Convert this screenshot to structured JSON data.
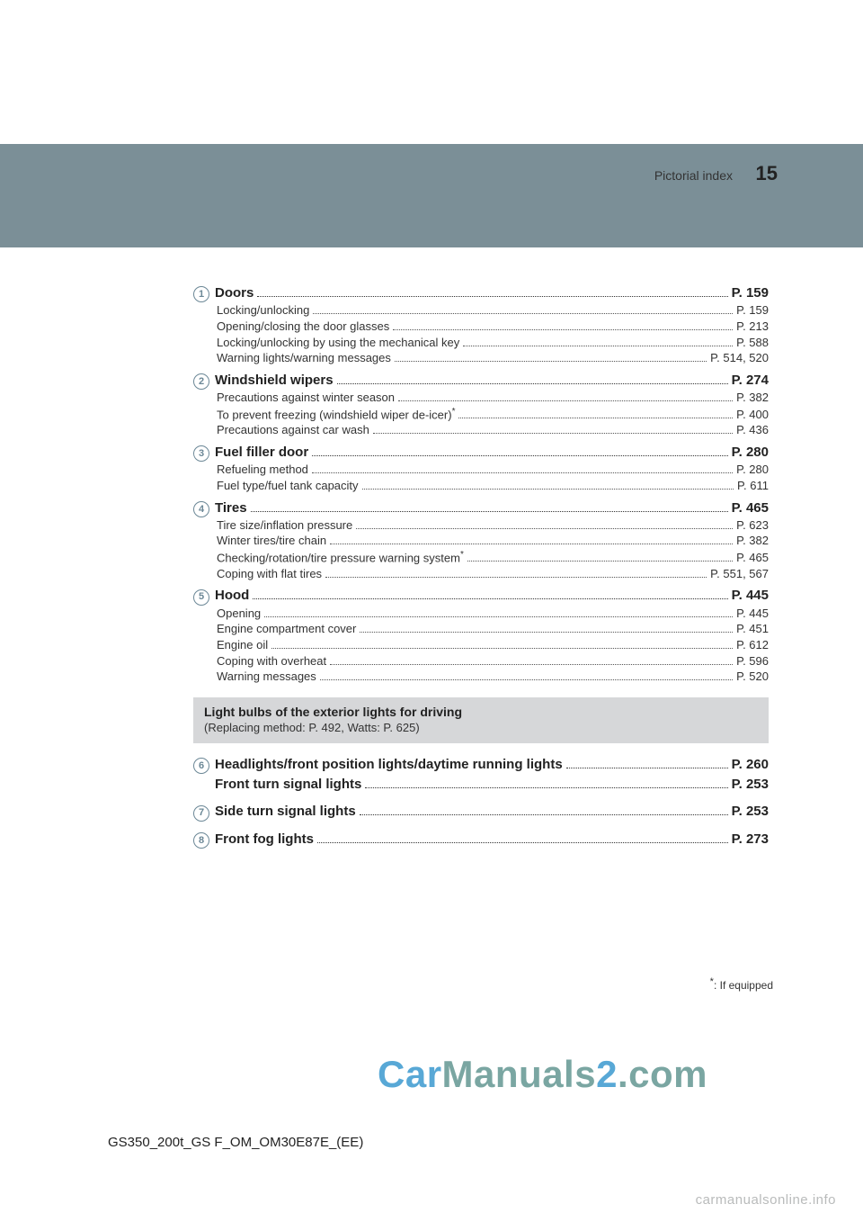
{
  "header": {
    "label": "Pictorial index",
    "pagenum": "15"
  },
  "sections": [
    {
      "num": "1",
      "title": "Doors",
      "page": "P. 159",
      "subs": [
        {
          "label": "Locking/unlocking",
          "page": "P. 159"
        },
        {
          "label": "Opening/closing the door glasses",
          "page": "P. 213"
        },
        {
          "label": "Locking/unlocking by using the mechanical key",
          "page": "P. 588"
        },
        {
          "label": "Warning lights/warning messages",
          "page": "P. 514, 520"
        }
      ]
    },
    {
      "num": "2",
      "title": "Windshield wipers",
      "page": "P. 274",
      "subs": [
        {
          "label": "Precautions against winter season",
          "page": "P. 382"
        },
        {
          "label": "To prevent freezing (windshield wiper de-icer)",
          "sup": "*",
          "page": "P. 400"
        },
        {
          "label": "Precautions against car wash",
          "page": "P. 436"
        }
      ]
    },
    {
      "num": "3",
      "title": "Fuel filler door",
      "page": "P. 280",
      "subs": [
        {
          "label": "Refueling method",
          "page": "P. 280"
        },
        {
          "label": "Fuel type/fuel tank capacity",
          "page": "P. 611"
        }
      ]
    },
    {
      "num": "4",
      "title": "Tires",
      "page": "P. 465",
      "subs": [
        {
          "label": "Tire size/inflation pressure",
          "page": "P. 623"
        },
        {
          "label": "Winter tires/tire chain",
          "page": "P. 382"
        },
        {
          "label": "Checking/rotation/tire pressure warning system",
          "sup": "*",
          "page": "P. 465"
        },
        {
          "label": "Coping with flat tires",
          "page": "P. 551, 567"
        }
      ]
    },
    {
      "num": "5",
      "title": "Hood",
      "page": "P. 445",
      "subs": [
        {
          "label": "Opening",
          "page": "P. 445"
        },
        {
          "label": "Engine compartment cover",
          "page": "P. 451"
        },
        {
          "label": "Engine oil",
          "page": "P. 612"
        },
        {
          "label": "Coping with overheat",
          "page": "P. 596"
        },
        {
          "label": "Warning messages",
          "page": "P. 520"
        }
      ]
    }
  ],
  "graybox": {
    "title": "Light bulbs of the exterior lights for driving",
    "subtitle": "(Replacing method: P. 492, Watts: P. 625)"
  },
  "lower_sections": [
    {
      "num": "6",
      "rows": [
        {
          "label": "Headlights/front position lights/daytime running lights",
          "page": "P. 260"
        },
        {
          "label": "Front turn signal lights",
          "page": "P. 253"
        }
      ]
    },
    {
      "num": "7",
      "rows": [
        {
          "label": "Side turn signal lights",
          "page": "P. 253"
        }
      ]
    },
    {
      "num": "8",
      "rows": [
        {
          "label": "Front fog lights",
          "page": "P. 273"
        }
      ]
    }
  ],
  "footnote": {
    "sup": "*",
    "text": ": If equipped"
  },
  "doc_code": "GS350_200t_GS F_OM_OM30E87E_(EE)",
  "watermark": {
    "part1": "Car",
    "part2": "Manuals",
    "part3": "2",
    "part4": ".com"
  },
  "watermark_footer": "carmanualsonline.info",
  "colors": {
    "band": "#7b8f97",
    "circled": "#6b8796",
    "gray": "#d6d7d9",
    "wm1": "#58a8d6",
    "wm2": "#7aa6a2"
  }
}
